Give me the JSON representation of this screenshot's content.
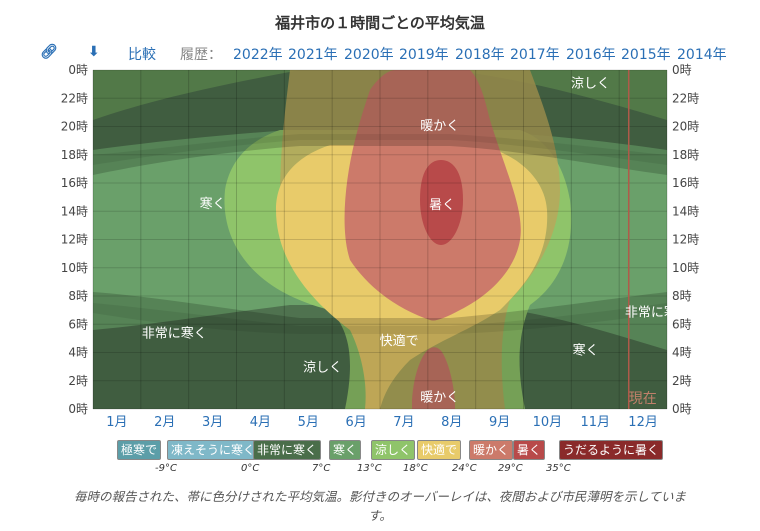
{
  "title": "福井市の１時間ごとの平均気温",
  "toolbar": {
    "link_icon": "link-icon",
    "download_icon": "download-icon",
    "compare": "比較",
    "history_label": "履歴：",
    "years": [
      "2022年",
      "2021年",
      "2020年",
      "2019年",
      "2018年",
      "2017年",
      "2016年",
      "2015年",
      "2014年"
    ]
  },
  "chart_data": {
    "type": "heatmap",
    "x_tick_labels": [
      "1月",
      "2月",
      "3月",
      "4月",
      "5月",
      "6月",
      "7月",
      "8月",
      "9月",
      "10月",
      "11月",
      "12月"
    ],
    "y_tick_labels": [
      "0時",
      "2時",
      "4時",
      "6時",
      "8時",
      "10時",
      "12時",
      "14時",
      "16時",
      "18時",
      "20時",
      "22時",
      "0時"
    ],
    "x_axis": "month of year",
    "y_axis": "hour of day",
    "ylim": [
      0,
      24
    ],
    "grid": true,
    "now_label": "現在",
    "now_month": 11.7,
    "band_labels": [
      {
        "text": "涼しく",
        "month": 10.9,
        "hour": 23.1
      },
      {
        "text": "暖かく",
        "month": 7.75,
        "hour": 20.1
      },
      {
        "text": "寒く",
        "month": 3.0,
        "hour": 14.6
      },
      {
        "text": "暑く",
        "month": 7.8,
        "hour": 14.5
      },
      {
        "text": "非常に寒く",
        "month": 12.3,
        "hour": 6.9
      },
      {
        "text": "非常に寒く",
        "month": 2.2,
        "hour": 5.4
      },
      {
        "text": "快適で",
        "month": 6.9,
        "hour": 4.9
      },
      {
        "text": "寒く",
        "month": 10.8,
        "hour": 4.2
      },
      {
        "text": "涼しく",
        "month": 5.3,
        "hour": 3.0
      },
      {
        "text": "暖かく",
        "month": 7.75,
        "hour": 0.9
      }
    ],
    "legend": [
      {
        "label": "極寒で",
        "color": "#5c9ea8"
      },
      {
        "label": "凍えそうに寒く",
        "color": "#7fb8c8"
      },
      {
        "label": "非常に寒く",
        "color": "#4a6e4a"
      },
      {
        "label": "寒く",
        "color": "#6aa06a"
      },
      {
        "label": "涼しく",
        "color": "#8fc46a"
      },
      {
        "label": "快適で",
        "color": "#e8cb6a"
      },
      {
        "label": "暖かく",
        "color": "#cc7a6a"
      },
      {
        "label": "暑く",
        "color": "#b84a4a"
      },
      {
        "label": "うだるように暑く",
        "color": "#8a2a2a"
      }
    ],
    "thresholds": [
      "-9°C",
      "0°C",
      "7°C",
      "13°C",
      "18°C",
      "24°C",
      "29°C",
      "35°C"
    ]
  },
  "caption": "毎時の報告された、帯に色分けされた平均気温。影付きのオーバーレイは、夜間および市民薄明を示しています。"
}
